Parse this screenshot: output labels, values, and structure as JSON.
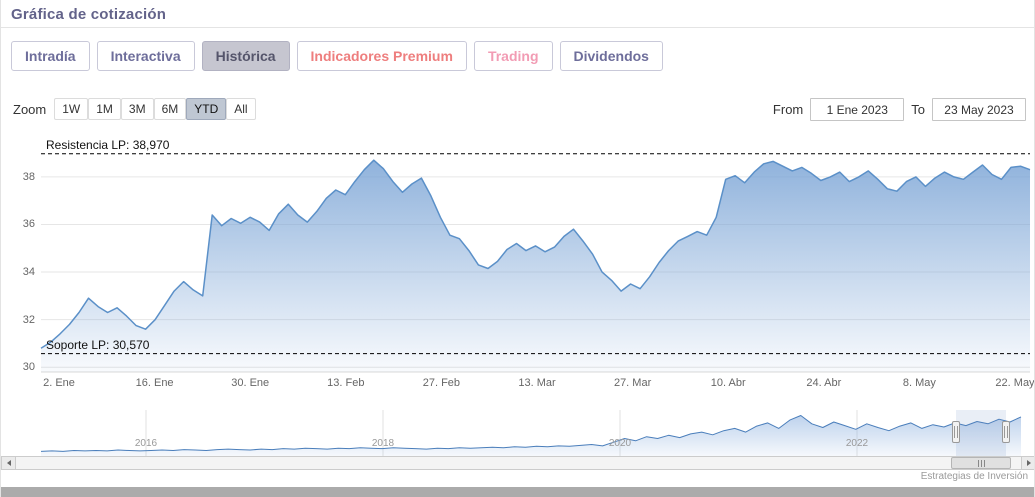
{
  "header": {
    "title": "Gráfica de cotización"
  },
  "tabs": [
    {
      "label": "Intradía",
      "color": "#6e6e9b",
      "active": false
    },
    {
      "label": "Interactiva",
      "color": "#6e6e9b",
      "active": false
    },
    {
      "label": "Histórica",
      "color": "#55556b",
      "active": true
    },
    {
      "label": "Indicadores Premium",
      "color": "#ee7e7e",
      "active": false
    },
    {
      "label": "Trading",
      "color": "#f29cb4",
      "active": false
    },
    {
      "label": "Dividendos",
      "color": "#6e6e9b",
      "active": false
    }
  ],
  "toolbar": {
    "zoom_label": "Zoom",
    "zoom_buttons": [
      "1W",
      "1M",
      "3M",
      "6M",
      "YTD",
      "All"
    ],
    "zoom_active": "YTD",
    "from_label": "From",
    "from_value": "1 Ene 2023",
    "to_label": "To",
    "to_value": "23 May 2023"
  },
  "chart_data": {
    "type": "area",
    "title": "Gráfica de cotización",
    "xlabel": "",
    "ylabel": "",
    "ylim": [
      29.8,
      39.55
    ],
    "yticks": [
      30,
      32,
      34,
      36,
      38
    ],
    "ytick_labels": [
      "30",
      "32",
      "34",
      "36",
      "38"
    ],
    "xtick_labels": [
      "2. Ene",
      "16. Ene",
      "30. Ene",
      "13. Feb",
      "27. Feb",
      "13. Mar",
      "27. Mar",
      "10. Abr",
      "24. Abr",
      "8. May",
      "22. May"
    ],
    "annotations": {
      "resistance": {
        "label": "Resistencia LP: 38,970",
        "value": 38.97
      },
      "support": {
        "label": "Soporte LP: 30,570",
        "value": 30.57
      }
    },
    "line_color": "#5b90c8",
    "fill_color": "#7ca5d6",
    "grid": true,
    "values": [
      30.8,
      31.05,
      31.4,
      31.8,
      32.3,
      32.9,
      32.55,
      32.3,
      32.5,
      32.15,
      31.75,
      31.6,
      32.0,
      32.6,
      33.2,
      33.6,
      33.25,
      33.0,
      36.4,
      35.95,
      36.25,
      36.05,
      36.3,
      36.1,
      35.75,
      36.45,
      36.85,
      36.4,
      36.1,
      36.55,
      37.1,
      37.45,
      37.25,
      37.8,
      38.3,
      38.7,
      38.35,
      37.8,
      37.35,
      37.7,
      37.95,
      37.2,
      36.3,
      35.55,
      35.4,
      34.9,
      34.3,
      34.15,
      34.45,
      34.95,
      35.2,
      34.9,
      35.1,
      34.85,
      35.05,
      35.5,
      35.8,
      35.3,
      34.75,
      34.0,
      33.65,
      33.2,
      33.5,
      33.3,
      33.8,
      34.4,
      34.9,
      35.3,
      35.5,
      35.7,
      35.55,
      36.3,
      37.9,
      38.05,
      37.75,
      38.2,
      38.55,
      38.65,
      38.45,
      38.25,
      38.4,
      38.15,
      37.85,
      38.0,
      38.2,
      37.8,
      38.0,
      38.25,
      37.9,
      37.5,
      37.4,
      37.8,
      38.0,
      37.6,
      37.95,
      38.2,
      38.0,
      37.9,
      38.2,
      38.5,
      38.1,
      37.9,
      38.4,
      38.45,
      38.3
    ]
  },
  "navigator": {
    "year_labels": [
      "2016",
      "2018",
      "2020",
      "2022"
    ],
    "line_color": "#4a7ebb",
    "fill_color": "#89aede",
    "values": [
      0.1,
      0.11,
      0.1,
      0.12,
      0.11,
      0.12,
      0.11,
      0.13,
      0.12,
      0.11,
      0.12,
      0.13,
      0.12,
      0.14,
      0.13,
      0.12,
      0.14,
      0.15,
      0.14,
      0.13,
      0.15,
      0.14,
      0.16,
      0.15,
      0.17,
      0.16,
      0.15,
      0.17,
      0.16,
      0.18,
      0.17,
      0.16,
      0.18,
      0.17,
      0.16,
      0.15,
      0.17,
      0.16,
      0.18,
      0.17,
      0.18,
      0.19,
      0.18,
      0.2,
      0.19,
      0.21,
      0.2,
      0.22,
      0.21,
      0.23,
      0.25,
      0.22,
      0.3,
      0.38,
      0.33,
      0.42,
      0.38,
      0.45,
      0.4,
      0.48,
      0.52,
      0.46,
      0.55,
      0.6,
      0.52,
      0.65,
      0.72,
      0.6,
      0.78,
      0.88,
      0.7,
      0.62,
      0.74,
      0.66,
      0.58,
      0.7,
      0.62,
      0.55,
      0.65,
      0.72,
      0.6,
      0.68,
      0.63,
      0.72,
      0.66,
      0.75,
      0.7,
      0.8,
      0.74,
      0.85
    ]
  },
  "footer": {
    "credit": "Estrategias de Inversión"
  }
}
